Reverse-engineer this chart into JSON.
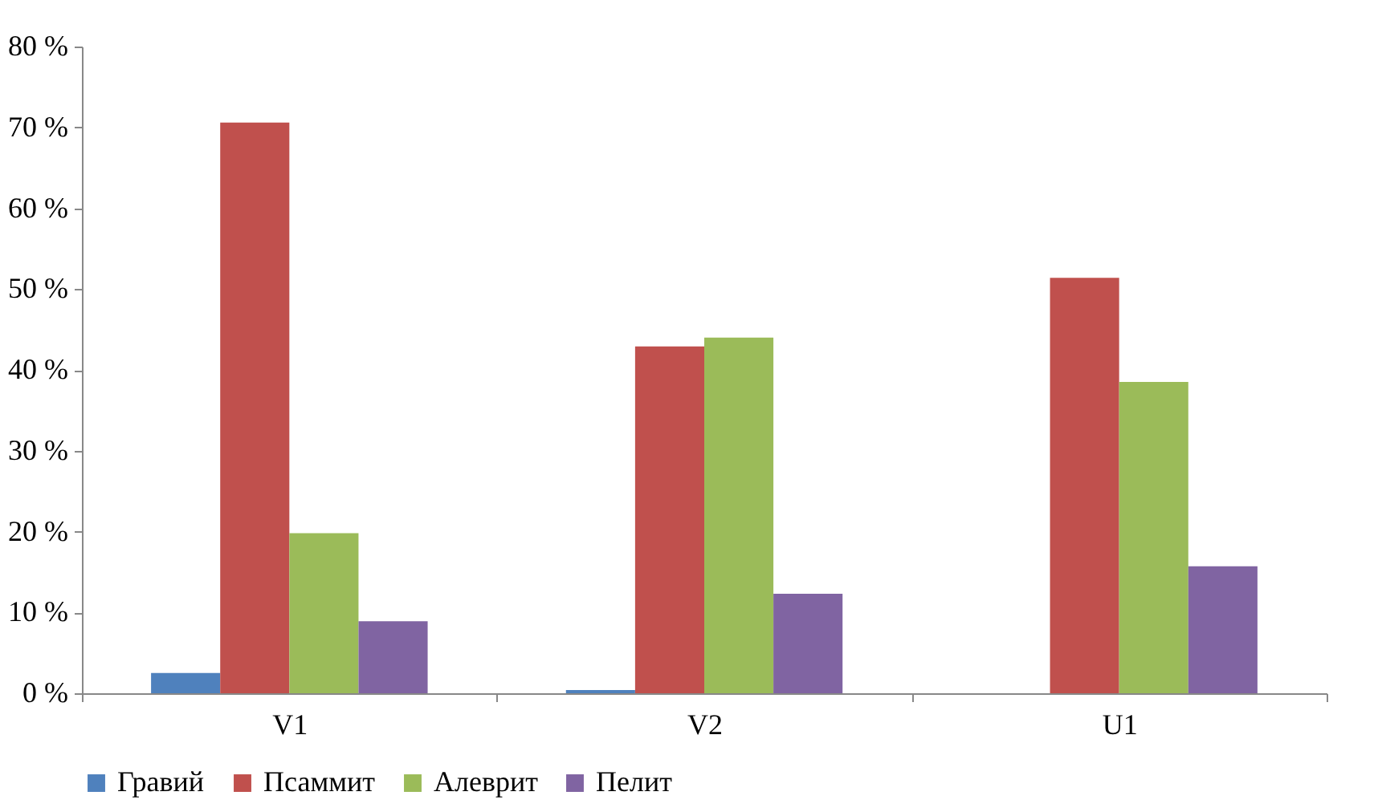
{
  "chart_data": {
    "type": "bar",
    "categories": [
      "V1",
      "V2",
      "U1"
    ],
    "series": [
      {
        "name": "Гравий",
        "color": "#4f81bd",
        "values": [
          2.5,
          0.4,
          0
        ]
      },
      {
        "name": "Псаммит",
        "color": "#c0504d",
        "values": [
          70.6,
          42.9,
          51.4
        ]
      },
      {
        "name": "Алеврит",
        "color": "#9bbb59",
        "values": [
          19.8,
          44.0,
          38.5
        ]
      },
      {
        "name": "Пелит",
        "color": "#8064a2",
        "values": [
          8.9,
          12.3,
          15.7
        ]
      }
    ],
    "ylim": [
      0,
      80
    ],
    "yticks": [
      {
        "value": 0,
        "label": "0 %"
      },
      {
        "value": 10,
        "label": "10 %"
      },
      {
        "value": 20,
        "label": "20 %"
      },
      {
        "value": 30,
        "label": "30 %"
      },
      {
        "value": 40,
        "label": "40 %"
      },
      {
        "value": 50,
        "label": "50 %"
      },
      {
        "value": 60,
        "label": "60 %"
      },
      {
        "value": 70,
        "label": "70 %"
      },
      {
        "value": 80,
        "label": "80 %"
      }
    ],
    "grid": false,
    "legend": "bottom"
  }
}
